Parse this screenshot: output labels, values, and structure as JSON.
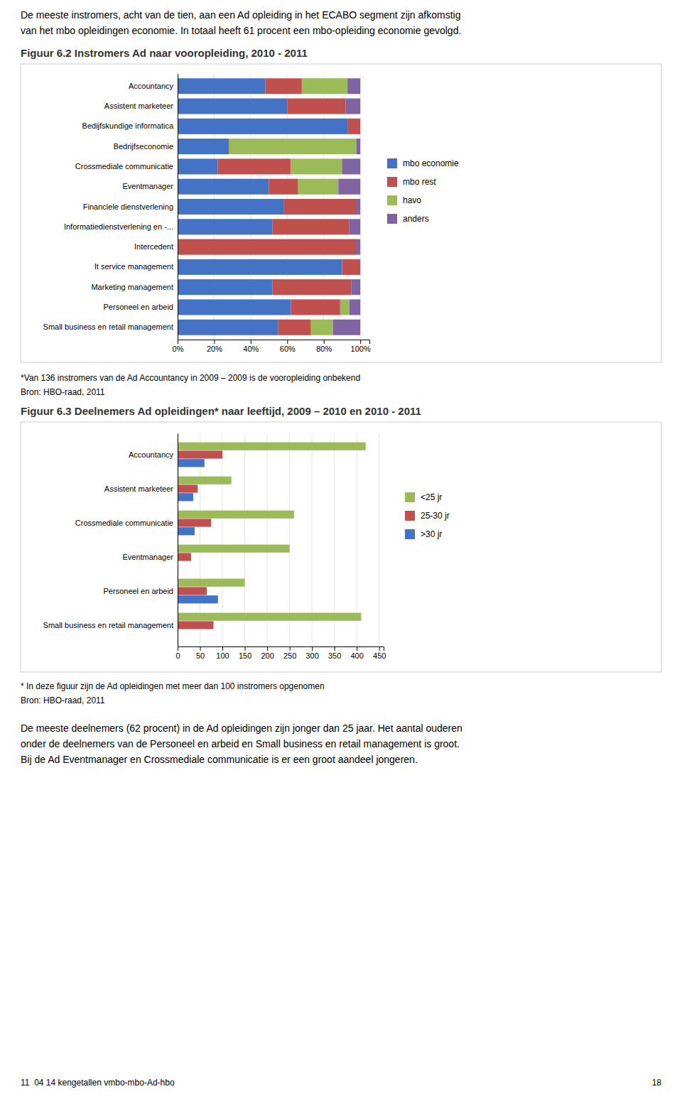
{
  "page": {
    "intro": [
      "De meeste instromers, acht van de tien, aan een Ad opleiding in het ECABO segment zijn afkomstig",
      "van het mbo opleidingen economie. In totaal heeft 61 procent een mbo-opleiding economie gevolgd."
    ],
    "paragraphs": [
      "De meeste deelnemers (62 procent) in de Ad opleidingen zijn jonger dan 25 jaar. Het aantal ouderen",
      "onder de deelnemers van de Personeel en arbeid en Small business en retail management is groot.",
      "Bij de Ad Eventmanager en Crossmediale communicatie is er een groot aandeel jongeren."
    ],
    "footer": [
      "11  04 14 kengetallen vmbo-mbo-Ad-hbo",
      "18"
    ]
  },
  "chart_data": [
    {
      "type": "bar",
      "title": "Figuur 6.2 Instromers Ad naar vooropleiding, 2010 - 2011",
      "orientation": "horizontal",
      "stacked": true,
      "grid": true,
      "legend": "right",
      "categories": [
        "Accountancy",
        "Assistent marketeer",
        "Bedijfskundige informatica",
        "Bedrijfseconomie",
        "Crossmediale communicatie",
        "Eventmanager",
        "Financiele dienstverlening",
        "Informatiedienstverlening en -...",
        "Intercedent",
        "It service management",
        "Marketing management",
        "Personeel en arbeid",
        "Small business en retail management"
      ],
      "series": [
        {
          "name": "mbo economie",
          "color": "#4472C4",
          "values": [
            0.48,
            0.6,
            0.93,
            0.28,
            0.22,
            0.5,
            0.58,
            0.52,
            0.0,
            0.9,
            0.52,
            0.62,
            0.55
          ]
        },
        {
          "name": "mbo rest",
          "color": "#C0504D",
          "values": [
            0.2,
            0.32,
            0.07,
            0.0,
            0.4,
            0.16,
            0.4,
            0.42,
            0.98,
            0.1,
            0.43,
            0.27,
            0.18
          ]
        },
        {
          "name": "havo",
          "color": "#9BBB59",
          "values": [
            0.25,
            0.0,
            0.0,
            0.7,
            0.28,
            0.22,
            0.0,
            0.0,
            0.0,
            0.0,
            0.0,
            0.05,
            0.12
          ]
        },
        {
          "name": "anders",
          "color": "#8064A2",
          "values": [
            0.07,
            0.08,
            0.0,
            0.02,
            0.1,
            0.12,
            0.02,
            0.06,
            0.02,
            0.0,
            0.05,
            0.06,
            0.15
          ]
        }
      ],
      "xlim": [
        0,
        1.05
      ],
      "xticks": [
        {
          "value": 0,
          "label": "0%"
        },
        {
          "value": 0.2,
          "label": "20%"
        },
        {
          "value": 0.4,
          "label": "40%"
        },
        {
          "value": 0.6,
          "label": "60%"
        },
        {
          "value": 0.8,
          "label": "80%"
        },
        {
          "value": 1.0,
          "label": "100%"
        }
      ],
      "notes": [
        "*Van 136 instromers van de Ad Accountancy in 2009 – 2009 is de vooropleiding onbekend",
        "Bron: HBO-raad, 2011"
      ]
    },
    {
      "type": "bar",
      "title": "Figuur 6.3 Deelnemers Ad opleidingen* naar leeftijd, 2009 – 2010 en 2010 - 2011",
      "orientation": "horizontal",
      "stacked": false,
      "grid": true,
      "legend": "right",
      "categories": [
        "Accountancy",
        "Assistent marketeer",
        "Crossmediale communicatie",
        "Eventmanager",
        "Personeel en arbeid",
        "Small business en retail management"
      ],
      "series": [
        {
          "name": "<25 jr",
          "color": "#9BBB59",
          "values": [
            420,
            120,
            260,
            250,
            150,
            410
          ]
        },
        {
          "name": "25-30 jr",
          "color": "#C0504D",
          "values": [
            100,
            45,
            75,
            30,
            65,
            80
          ]
        },
        {
          "name": ">30 jr",
          "color": "#4472C4",
          "values": [
            60,
            35,
            38,
            0,
            90,
            0
          ]
        }
      ],
      "xlim": [
        0,
        460
      ],
      "xticks": [
        0,
        50,
        100,
        150,
        200,
        250,
        300,
        350,
        400,
        450
      ],
      "notes": [
        "* In deze figuur zijn de Ad opleidingen met meer dan 100 instromers opgenomen",
        "Bron: HBO-raad, 2011"
      ]
    }
  ]
}
